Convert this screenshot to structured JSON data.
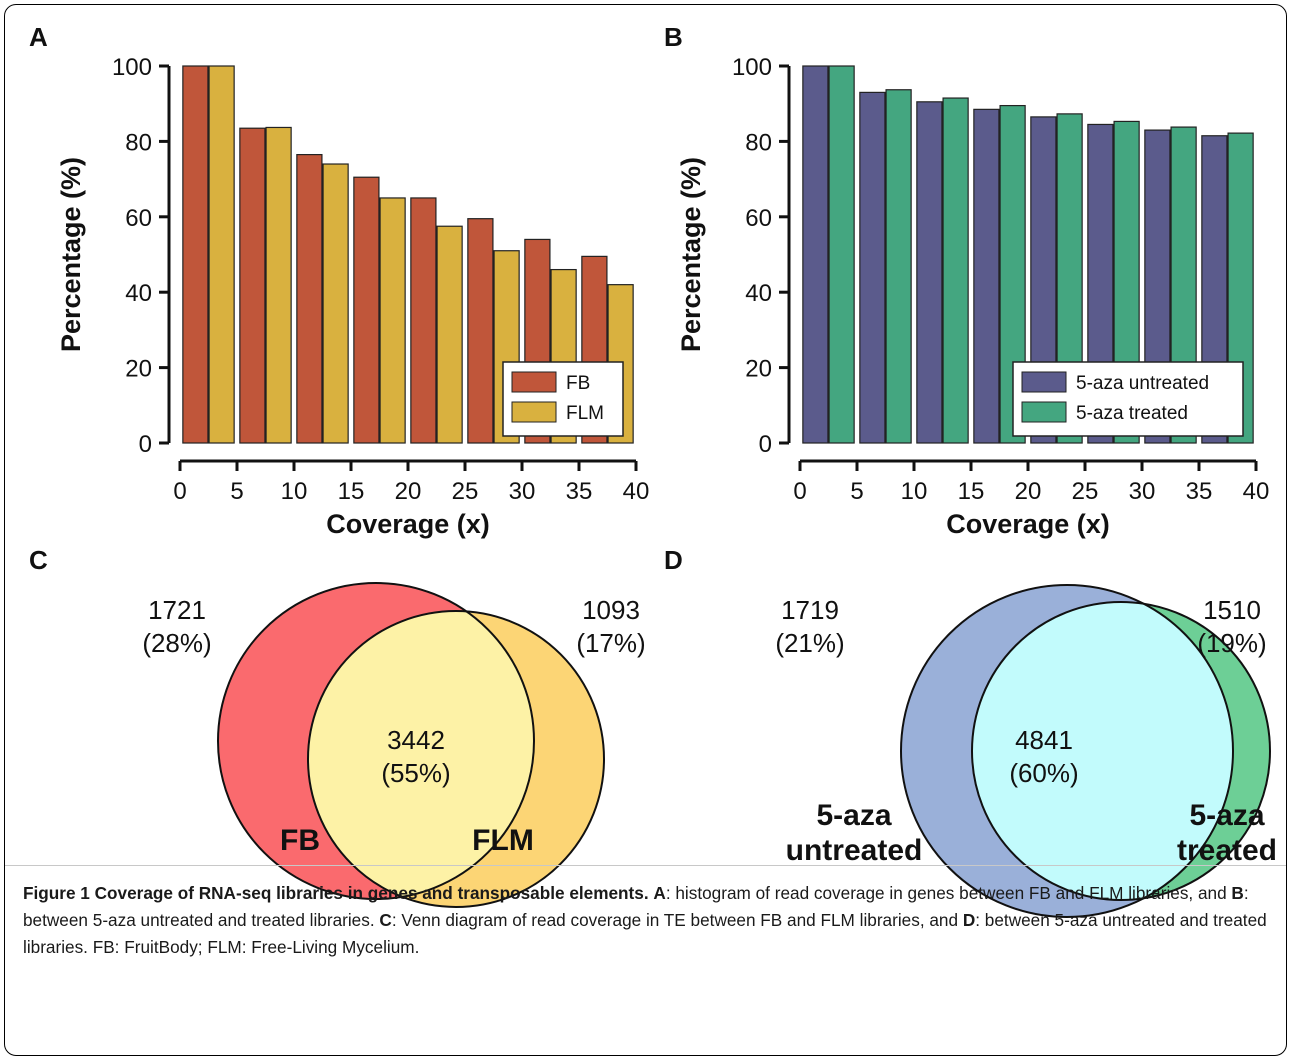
{
  "panels": {
    "a": {
      "letter": "A"
    },
    "b": {
      "letter": "B"
    },
    "c": {
      "letter": "C"
    },
    "d": {
      "letter": "D"
    }
  },
  "chart_data": [
    {
      "type": "bar",
      "panel": "A",
      "x": [
        2.5,
        7.5,
        12.5,
        17.5,
        22.5,
        27.5,
        32.5,
        37.5
      ],
      "series": [
        {
          "name": "FB",
          "color": "#c0563a",
          "values": [
            100,
            83.5,
            76.5,
            70.5,
            65,
            59.5,
            54,
            49.5
          ]
        },
        {
          "name": "FLM",
          "color": "#d9b13f",
          "values": [
            100,
            83.7,
            74,
            65,
            57.5,
            51,
            46,
            42
          ]
        }
      ],
      "xlabel": "Coverage (x)",
      "ylabel": "Percentage (%)",
      "xlim": [
        0,
        40
      ],
      "ylim": [
        0,
        100
      ],
      "xticks": [
        0,
        5,
        10,
        15,
        20,
        25,
        30,
        35,
        40
      ],
      "yticks": [
        0,
        20,
        40,
        60,
        80,
        100
      ],
      "legend_position": "bottom-right",
      "grid": false
    },
    {
      "type": "bar",
      "panel": "B",
      "x": [
        2.5,
        7.5,
        12.5,
        17.5,
        22.5,
        27.5,
        32.5,
        37.5
      ],
      "series": [
        {
          "name": "5-aza untreated",
          "color": "#5b5b8c",
          "values": [
            100,
            93,
            90.5,
            88.5,
            86.5,
            84.5,
            83,
            81.5
          ]
        },
        {
          "name": "5-aza treated",
          "color": "#44a680",
          "values": [
            100,
            93.7,
            91.5,
            89.5,
            87.3,
            85.3,
            83.8,
            82.2
          ]
        }
      ],
      "xlabel": "Coverage (x)",
      "ylabel": "Percentage (%)",
      "xlim": [
        0,
        40
      ],
      "ylim": [
        0,
        100
      ],
      "xticks": [
        0,
        5,
        10,
        15,
        20,
        25,
        30,
        35,
        40
      ],
      "yticks": [
        0,
        20,
        40,
        60,
        80,
        100
      ],
      "legend_position": "bottom-right",
      "grid": false
    },
    {
      "type": "venn",
      "panel": "C",
      "sets": [
        {
          "name": "FB",
          "color": "#fa6a6e"
        },
        {
          "name": "FLM",
          "color": "#fcd575"
        }
      ],
      "overlap_color": "#fdf2a6",
      "regions": {
        "left_only": {
          "count": "1721",
          "percent": "(28%)"
        },
        "both": {
          "count": "3442",
          "percent": "(55%)"
        },
        "right_only": {
          "count": "1093",
          "percent": "(17%)"
        }
      }
    },
    {
      "type": "venn",
      "panel": "D",
      "sets": [
        {
          "name_line1": "5-aza",
          "name_line2": "untreated",
          "color": "#9ab0d9"
        },
        {
          "name_line1": "5-aza",
          "name_line2": "treated",
          "color": "#6dcf96"
        }
      ],
      "overlap_color": "#c2fbfc",
      "regions": {
        "left_only": {
          "count": "1719",
          "percent": "(21%)"
        },
        "both": {
          "count": "4841",
          "percent": "(60%)"
        },
        "right_only": {
          "count": "1510",
          "percent": "(19%)"
        }
      }
    }
  ],
  "caption": {
    "title": "Figure 1 Coverage of RNA-seq libraries in genes and transposable elements.",
    "label_a": "A",
    "text_a": ": histogram of read coverage in genes between FB and FLM libraries, and ",
    "label_b": "B",
    "text_b": ": between 5-aza untreated and treated libraries. ",
    "label_c": "C",
    "text_c": ": Venn diagram of read coverage in TE between FB and FLM libraries, and ",
    "label_d": "D",
    "text_d": ": between 5-aza untreated and treated libraries. FB: FruitBody; FLM: Free-Living Mycelium."
  }
}
